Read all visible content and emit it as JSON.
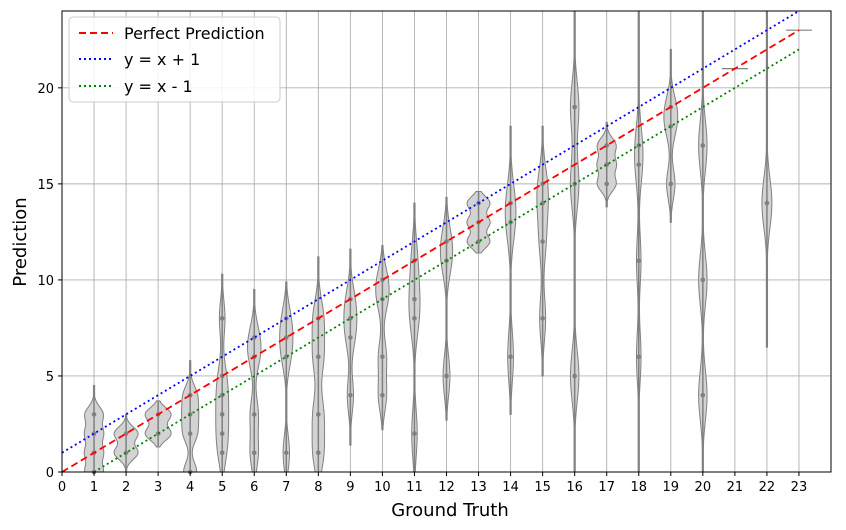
{
  "chart_data": {
    "type": "violin",
    "title": "",
    "xlabel": "Ground Truth",
    "ylabel": "Prediction",
    "xlim": [
      0,
      24
    ],
    "ylim": [
      0,
      24
    ],
    "xticks": [
      0,
      1,
      2,
      3,
      4,
      5,
      6,
      7,
      8,
      9,
      10,
      11,
      12,
      13,
      14,
      15,
      16,
      17,
      18,
      19,
      20,
      21,
      22,
      23
    ],
    "yticks": [
      0,
      5,
      10,
      15,
      20
    ],
    "grid": true,
    "legend": {
      "placement": "top-left",
      "entries": [
        {
          "label": "Perfect Prediction",
          "color": "#ff0000",
          "style": "dashed"
        },
        {
          "label": "y = x + 1",
          "color": "#0000ff",
          "style": "dotted"
        },
        {
          "label": "y = x - 1",
          "color": "#008000",
          "style": "dotted"
        }
      ]
    },
    "reference_lines": [
      {
        "name": "Perfect Prediction",
        "slope": 1,
        "intercept": 0,
        "color": "#ff0000",
        "style": "dashed"
      },
      {
        "name": "y = x + 1",
        "slope": 1,
        "intercept": 1,
        "color": "#0000ff",
        "style": "dotted"
      },
      {
        "name": "y = x - 1",
        "slope": 1,
        "intercept": -1,
        "color": "#008000",
        "style": "dotted"
      }
    ],
    "violins": [
      {
        "x": 1,
        "min": 0,
        "max": 4.5,
        "points": [
          0,
          1,
          2,
          3
        ]
      },
      {
        "x": 2,
        "min": 0,
        "max": 3,
        "points": [
          1,
          2
        ]
      },
      {
        "x": 3,
        "min": 1.3,
        "max": 3.7,
        "points": [
          2,
          3
        ]
      },
      {
        "x": 4,
        "min": 0,
        "max": 5.8,
        "points": [
          0,
          2,
          3,
          4
        ]
      },
      {
        "x": 5,
        "min": 0,
        "max": 10.3,
        "points": [
          1,
          2,
          3,
          4,
          5,
          8
        ]
      },
      {
        "x": 6,
        "min": 0,
        "max": 9.5,
        "points": [
          1,
          3,
          6,
          7
        ]
      },
      {
        "x": 7,
        "min": 0,
        "max": 9.9,
        "points": [
          1,
          6,
          7,
          8
        ]
      },
      {
        "x": 8,
        "min": 0,
        "max": 11.2,
        "points": [
          1,
          3,
          6,
          8
        ]
      },
      {
        "x": 9,
        "min": 1.4,
        "max": 11.6,
        "points": [
          4,
          7,
          8,
          9
        ]
      },
      {
        "x": 10,
        "min": 2.2,
        "max": 11.8,
        "points": [
          4,
          6,
          9,
          10
        ]
      },
      {
        "x": 11,
        "min": 0,
        "max": 14,
        "points": [
          2,
          8,
          9,
          11
        ]
      },
      {
        "x": 12,
        "min": 2.7,
        "max": 14.3,
        "points": [
          5,
          11,
          12
        ]
      },
      {
        "x": 13,
        "min": 11.4,
        "max": 14.6,
        "points": [
          12,
          13,
          14
        ]
      },
      {
        "x": 14,
        "min": 3,
        "max": 18,
        "points": [
          6,
          13,
          14
        ]
      },
      {
        "x": 15,
        "min": 5,
        "max": 18,
        "points": [
          8,
          12,
          14,
          15
        ]
      },
      {
        "x": 16,
        "min": 0,
        "max": 24,
        "points": [
          5,
          15,
          19
        ]
      },
      {
        "x": 17,
        "min": 13.8,
        "max": 18.2,
        "points": [
          15,
          16,
          17
        ]
      },
      {
        "x": 18,
        "min": 0,
        "max": 24,
        "points": [
          6,
          11,
          16,
          17
        ]
      },
      {
        "x": 19,
        "min": 13,
        "max": 22,
        "points": [
          15,
          18,
          19
        ]
      },
      {
        "x": 20,
        "min": 0,
        "max": 24,
        "points": [
          4,
          10,
          17
        ]
      },
      {
        "x": 21,
        "min": 21,
        "max": 21,
        "points": [
          21
        ]
      },
      {
        "x": 22,
        "min": 6.5,
        "max": 24,
        "points": [
          14
        ]
      },
      {
        "x": 23,
        "min": 23,
        "max": 23,
        "points": [
          23
        ]
      }
    ],
    "violin_fill": "#d3d3d3",
    "violin_edge": "#808080",
    "point_color": "#808080"
  }
}
